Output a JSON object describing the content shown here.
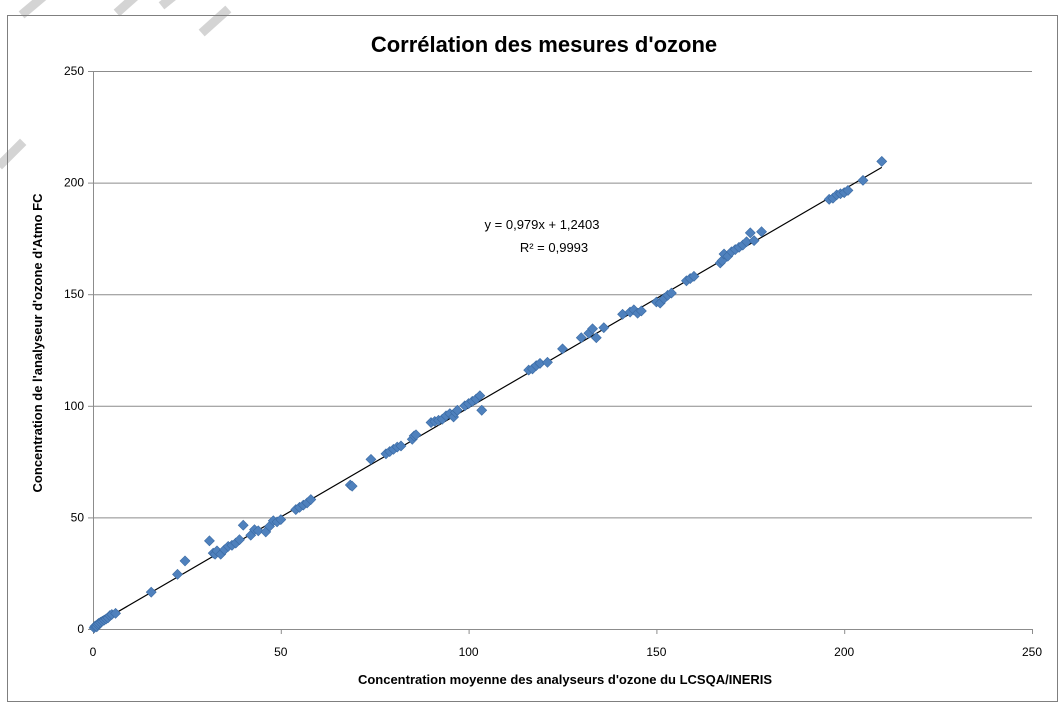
{
  "chart_data": {
    "type": "scatter",
    "title": "Corrélation des mesures d'ozone",
    "xlabel": "Concentration moyenne des analyseurs d'ozone du LCSQA/INERIS",
    "ylabel": "Concentration de l'analyseur d'ozone d'Atmo FC",
    "xlim": [
      0,
      250
    ],
    "ylim": [
      0,
      250
    ],
    "xticks": [
      "0",
      "50",
      "100",
      "150",
      "200",
      "250"
    ],
    "yticks": [
      "0",
      "50",
      "100",
      "150",
      "200",
      "250"
    ],
    "grid": "horizontal",
    "marker_color": "#4f81bd",
    "trendline": {
      "slope": 0.979,
      "intercept": 1.2403,
      "x_range": [
        0,
        210
      ],
      "equation": "y = 0,979x + 1,2403",
      "r2": "R² = 0,9993"
    },
    "points": [
      [
        0.3,
        0.5
      ],
      [
        0.5,
        1.2
      ],
      [
        0.8,
        1.5
      ],
      [
        1.0,
        1.0
      ],
      [
        1.2,
        2.0
      ],
      [
        1.5,
        2.5
      ],
      [
        2.0,
        3.0
      ],
      [
        2.5,
        3.5
      ],
      [
        3.0,
        4.0
      ],
      [
        3.5,
        4.5
      ],
      [
        4.0,
        5.0
      ],
      [
        4.5,
        6.0
      ],
      [
        5.0,
        6.5
      ],
      [
        6.0,
        7.0
      ],
      [
        15.5,
        16.5
      ],
      [
        22.5,
        24.5
      ],
      [
        24.5,
        30.5
      ],
      [
        31.0,
        39.5
      ],
      [
        32.0,
        34.0
      ],
      [
        32.5,
        33.5
      ],
      [
        33.0,
        35.0
      ],
      [
        34.0,
        33.5
      ],
      [
        35.0,
        35.5
      ],
      [
        36.0,
        37.0
      ],
      [
        37.0,
        37.5
      ],
      [
        38.0,
        38.5
      ],
      [
        39.0,
        40.0
      ],
      [
        40.0,
        46.5
      ],
      [
        42.0,
        42.0
      ],
      [
        43.0,
        44.5
      ],
      [
        44.0,
        44.0
      ],
      [
        46.0,
        43.5
      ],
      [
        47.0,
        46.0
      ],
      [
        48.0,
        48.5
      ],
      [
        49.0,
        48.0
      ],
      [
        50.0,
        49.0
      ],
      [
        54.0,
        53.5
      ],
      [
        55.0,
        54.5
      ],
      [
        56.0,
        55.5
      ],
      [
        57.0,
        56.5
      ],
      [
        58.0,
        58.0
      ],
      [
        68.5,
        64.5
      ],
      [
        69.0,
        64.0
      ],
      [
        74.0,
        76.0
      ],
      [
        78.0,
        78.5
      ],
      [
        79.0,
        79.5
      ],
      [
        80.0,
        80.5
      ],
      [
        81.0,
        81.5
      ],
      [
        82.0,
        82.0
      ],
      [
        85.0,
        85.0
      ],
      [
        85.5,
        86.5
      ],
      [
        86.0,
        87.0
      ],
      [
        90.0,
        92.5
      ],
      [
        91.0,
        93.0
      ],
      [
        92.0,
        93.5
      ],
      [
        93.0,
        94.0
      ],
      [
        94.0,
        95.5
      ],
      [
        95.0,
        96.5
      ],
      [
        96.0,
        95.0
      ],
      [
        96.5,
        97.0
      ],
      [
        97.0,
        98.0
      ],
      [
        99.0,
        100.0
      ],
      [
        100.0,
        101.0
      ],
      [
        101.0,
        102.0
      ],
      [
        102.0,
        103.0
      ],
      [
        103.0,
        104.5
      ],
      [
        103.5,
        98.0
      ],
      [
        116.0,
        116.0
      ],
      [
        117.0,
        116.5
      ],
      [
        118.0,
        118.0
      ],
      [
        119.0,
        119.0
      ],
      [
        121.0,
        119.5
      ],
      [
        125.0,
        125.5
      ],
      [
        130.0,
        130.5
      ],
      [
        132.0,
        132.5
      ],
      [
        133.0,
        134.5
      ],
      [
        134.0,
        130.5
      ],
      [
        136.0,
        135.0
      ],
      [
        141.0,
        141.0
      ],
      [
        143.0,
        142.0
      ],
      [
        144.0,
        143.0
      ],
      [
        145.0,
        141.5
      ],
      [
        146.0,
        142.5
      ],
      [
        150.0,
        146.5
      ],
      [
        151.0,
        146.0
      ],
      [
        152.0,
        148.0
      ],
      [
        153.0,
        149.5
      ],
      [
        154.0,
        150.5
      ],
      [
        158.0,
        156.0
      ],
      [
        159.0,
        157.0
      ],
      [
        160.0,
        158.0
      ],
      [
        167.0,
        164.0
      ],
      [
        167.5,
        165.0
      ],
      [
        168.0,
        168.0
      ],
      [
        169.0,
        167.0
      ],
      [
        170.0,
        169.0
      ],
      [
        171.0,
        170.0
      ],
      [
        172.0,
        171.0
      ],
      [
        173.0,
        172.0
      ],
      [
        174.0,
        173.5
      ],
      [
        175.0,
        177.5
      ],
      [
        176.0,
        174.0
      ],
      [
        178.0,
        178.0
      ],
      [
        196.0,
        192.5
      ],
      [
        197.0,
        193.0
      ],
      [
        198.0,
        194.5
      ],
      [
        199.0,
        195.0
      ],
      [
        200.0,
        195.5
      ],
      [
        201.0,
        196.5
      ],
      [
        205.0,
        201.0
      ],
      [
        210.0,
        209.5
      ]
    ]
  }
}
